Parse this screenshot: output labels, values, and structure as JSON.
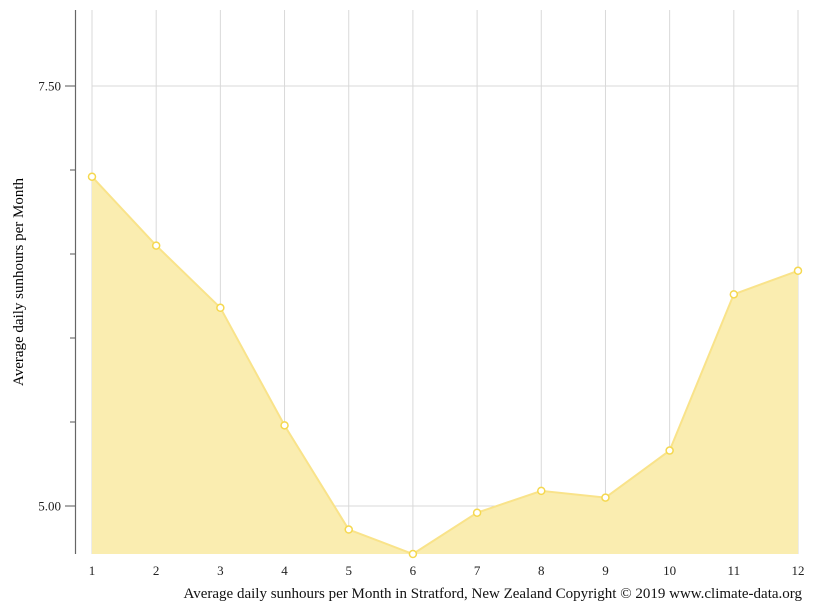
{
  "chart_data": {
    "type": "area",
    "title": "",
    "caption": "Average daily sunhours per Month in Stratford, New Zealand Copyright © 2019 www.climate-data.org",
    "xlabel": "",
    "ylabel": "Average daily sunhours per Month",
    "categories": [
      "1",
      "2",
      "3",
      "4",
      "5",
      "6",
      "7",
      "8",
      "9",
      "10",
      "11",
      "12"
    ],
    "series": [
      {
        "name": "Average daily sunhours",
        "values": [
          6.96,
          6.55,
          6.18,
          5.48,
          4.86,
          4.71,
          4.96,
          5.09,
          5.05,
          5.33,
          6.26,
          6.4
        ],
        "fill_color": "#faedb0",
        "line_color": "#f9e38a",
        "marker_color": "#f5d84f"
      }
    ],
    "y_ticks": [
      {
        "value": 5.0,
        "label": "5.00",
        "major": true
      },
      {
        "value": 5.5,
        "label": "",
        "major": false
      },
      {
        "value": 6.0,
        "label": "",
        "major": false
      },
      {
        "value": 6.5,
        "label": "",
        "major": false
      },
      {
        "value": 7.0,
        "label": "",
        "major": false
      },
      {
        "value": 7.5,
        "label": "7.50",
        "major": true
      }
    ],
    "ylim": [
      4.71,
      7.95
    ],
    "grid": true,
    "legend": "none"
  }
}
